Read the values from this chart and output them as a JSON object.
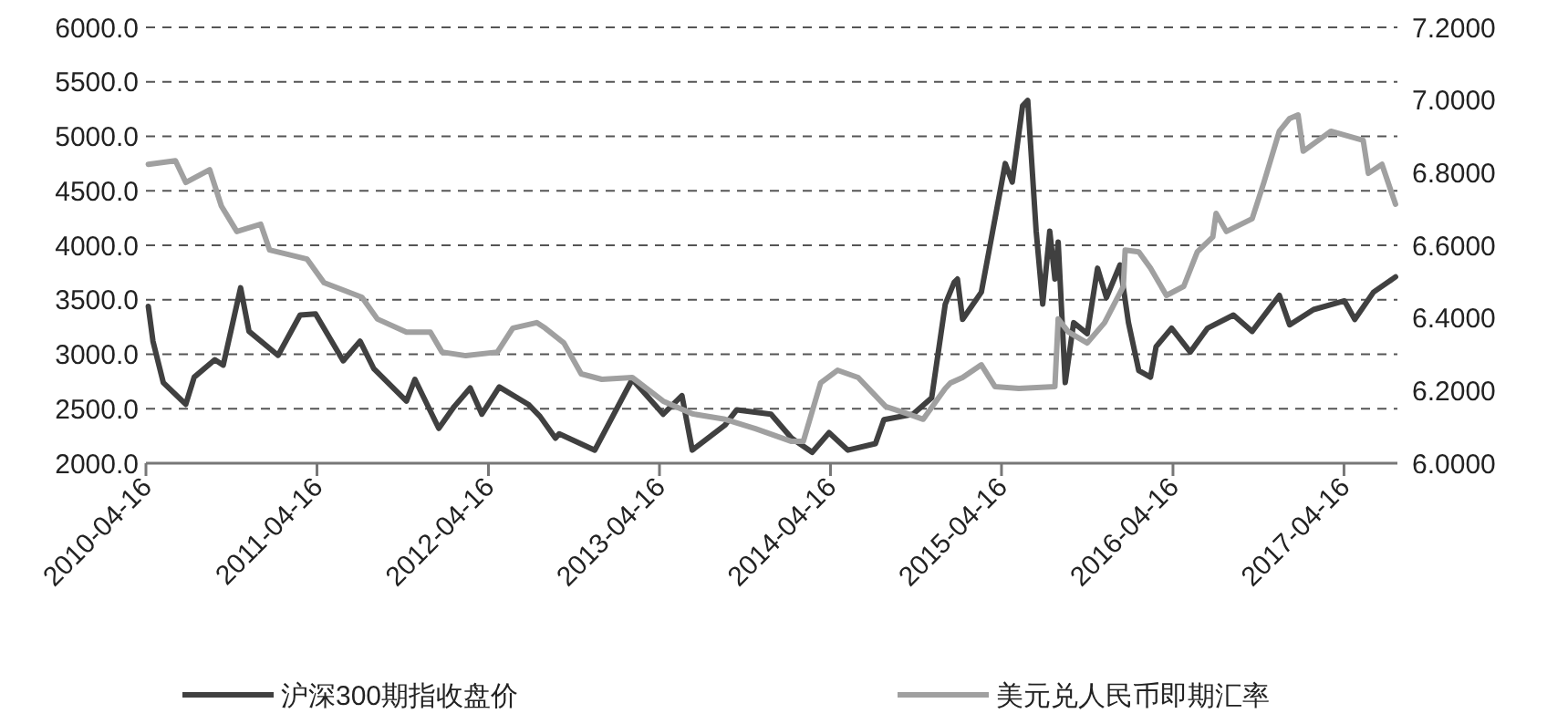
{
  "chart_data": {
    "type": "line",
    "xlim": [
      "2010-04-16",
      "2017-08-08"
    ],
    "xticks": [
      "2010-04-16",
      "2011-04-16",
      "2012-04-16",
      "2013-04-16",
      "2014-04-16",
      "2015-04-16",
      "2016-04-16",
      "2017-04-16"
    ],
    "ylim": [
      2000,
      6000
    ],
    "yticks": [
      {
        "value": 2000,
        "label": "2000.0"
      },
      {
        "value": 2500,
        "label": "2500.0"
      },
      {
        "value": 3000,
        "label": "3000.0"
      },
      {
        "value": 3500,
        "label": "3500.0"
      },
      {
        "value": 4000,
        "label": "4000.0"
      },
      {
        "value": 4500,
        "label": "4500.0"
      },
      {
        "value": 5000,
        "label": "5000.0"
      },
      {
        "value": 5500,
        "label": "5500.0"
      },
      {
        "value": 6000,
        "label": "6000.0"
      }
    ],
    "y2lim": [
      6.0,
      7.2
    ],
    "y2ticks": [
      {
        "value": 6.0,
        "label": "6.0000"
      },
      {
        "value": 6.2,
        "label": "6.2000"
      },
      {
        "value": 6.4,
        "label": "6.4000"
      },
      {
        "value": 6.6,
        "label": "6.6000"
      },
      {
        "value": 6.8,
        "label": "6.8000"
      },
      {
        "value": 7.0,
        "label": "7.0000"
      },
      {
        "value": 7.2,
        "label": "7.2000"
      }
    ],
    "grid": "y",
    "legend": "bottom",
    "line_style": "solid",
    "marker": "none",
    "series": [
      {
        "name": "沪深300期指收盘价",
        "color": "#404040",
        "x": [
          "2010-04-21",
          "2010-05-01",
          "2010-05-23",
          "2010-07-10",
          "2010-07-28",
          "2010-09-10",
          "2010-09-28",
          "2010-11-04",
          "2010-11-22",
          "2011-01-23",
          "2011-03-11",
          "2011-04-13",
          "2011-06-11",
          "2011-07-17",
          "2011-08-15",
          "2011-10-24",
          "2011-11-11",
          "2012-01-01",
          "2012-02-03",
          "2012-03-08",
          "2012-04-02",
          "2012-05-09",
          "2012-07-10",
          "2012-08-04",
          "2012-09-06",
          "2012-09-14",
          "2012-11-29",
          "2013-02-17",
          "2013-04-24",
          "2013-06-03",
          "2013-06-25",
          "2013-09-03",
          "2013-09-28",
          "2013-12-10",
          "2014-01-23",
          "2014-03-08",
          "2014-04-13",
          "2014-05-23",
          "2014-07-21",
          "2014-08-08",
          "2014-10-09",
          "2014-11-18",
          "2014-12-17",
          "2015-01-05",
          "2015-01-12",
          "2015-01-23",
          "2015-03-04",
          "2015-04-24",
          "2015-05-09",
          "2015-05-31",
          "2015-06-11",
          "2015-06-29",
          "2015-07-13",
          "2015-07-28",
          "2015-08-08",
          "2015-08-15",
          "2015-08-30",
          "2015-09-17",
          "2015-10-16",
          "2015-11-07",
          "2015-11-26",
          "2015-12-25",
          "2016-01-12",
          "2016-02-03",
          "2016-02-28",
          "2016-03-11",
          "2016-04-13",
          "2016-05-23",
          "2016-06-29",
          "2016-08-23",
          "2016-10-02",
          "2016-11-29",
          "2016-12-21",
          "2017-02-10",
          "2017-04-17",
          "2017-05-09",
          "2017-06-18",
          "2017-08-04"
        ],
        "values": [
          3440,
          3120,
          2740,
          2540,
          2790,
          2950,
          2900,
          3610,
          3210,
          2990,
          3360,
          3370,
          2940,
          3120,
          2870,
          2570,
          2770,
          2320,
          2520,
          2690,
          2450,
          2700,
          2540,
          2430,
          2230,
          2270,
          2120,
          2770,
          2450,
          2620,
          2120,
          2350,
          2490,
          2450,
          2230,
          2100,
          2280,
          2120,
          2180,
          2400,
          2450,
          2600,
          3460,
          3660,
          3690,
          3320,
          3570,
          4750,
          4580,
          5280,
          5330,
          4130,
          3460,
          4130,
          3690,
          4030,
          2740,
          3290,
          3190,
          3790,
          3520,
          3820,
          3290,
          2850,
          2790,
          3070,
          3240,
          3020,
          3240,
          3360,
          3210,
          3540,
          3270,
          3410,
          3490,
          3320,
          3570,
          3710
        ]
      },
      {
        "name": "美元兑人民币即期汇率",
        "color": "#a0a0a0",
        "axis": "y2",
        "x": [
          "2010-04-21",
          "2010-06-18",
          "2010-07-10",
          "2010-08-30",
          "2010-09-24",
          "2010-10-27",
          "2010-12-17",
          "2011-01-05",
          "2011-03-26",
          "2011-05-01",
          "2011-07-21",
          "2011-08-23",
          "2011-10-24",
          "2011-12-14",
          "2012-01-08",
          "2012-02-28",
          "2012-05-05",
          "2012-06-07",
          "2012-07-28",
          "2012-08-15",
          "2012-09-24",
          "2012-10-31",
          "2012-12-14",
          "2013-02-17",
          "2013-04-24",
          "2013-06-25",
          "2013-09-03",
          "2013-11-07",
          "2014-01-23",
          "2014-02-17",
          "2014-03-26",
          "2014-05-01",
          "2014-06-14",
          "2014-08-12",
          "2014-09-28",
          "2014-10-31",
          "2014-12-17",
          "2014-12-28",
          "2015-01-23",
          "2015-03-04",
          "2015-04-02",
          "2015-05-23",
          "2015-08-08",
          "2015-08-15",
          "2015-09-06",
          "2015-10-16",
          "2015-11-22",
          "2016-01-01",
          "2016-01-05",
          "2016-02-03",
          "2016-02-28",
          "2016-04-02",
          "2016-05-09",
          "2016-06-07",
          "2016-07-10",
          "2016-07-17",
          "2016-08-08",
          "2016-10-02",
          "2016-10-27",
          "2016-11-29",
          "2016-12-21",
          "2017-01-08",
          "2017-01-19",
          "2017-03-19",
          "2017-05-27",
          "2017-06-07",
          "2017-07-06",
          "2017-08-04"
        ],
        "values": [
          6.823,
          6.833,
          6.773,
          6.808,
          6.708,
          6.638,
          6.658,
          6.587,
          6.562,
          6.497,
          6.457,
          6.397,
          6.361,
          6.361,
          6.306,
          6.296,
          6.306,
          6.372,
          6.387,
          6.372,
          6.331,
          6.246,
          6.231,
          6.236,
          6.171,
          6.136,
          6.121,
          6.095,
          6.06,
          6.06,
          6.221,
          6.256,
          6.236,
          6.156,
          6.136,
          6.121,
          6.206,
          6.221,
          6.236,
          6.271,
          6.211,
          6.206,
          6.211,
          6.397,
          6.361,
          6.331,
          6.387,
          6.487,
          6.587,
          6.582,
          6.537,
          6.462,
          6.487,
          6.582,
          6.623,
          6.688,
          6.638,
          6.673,
          6.773,
          6.914,
          6.949,
          6.959,
          6.859,
          6.914,
          6.889,
          6.798,
          6.823,
          6.713
        ]
      }
    ]
  }
}
